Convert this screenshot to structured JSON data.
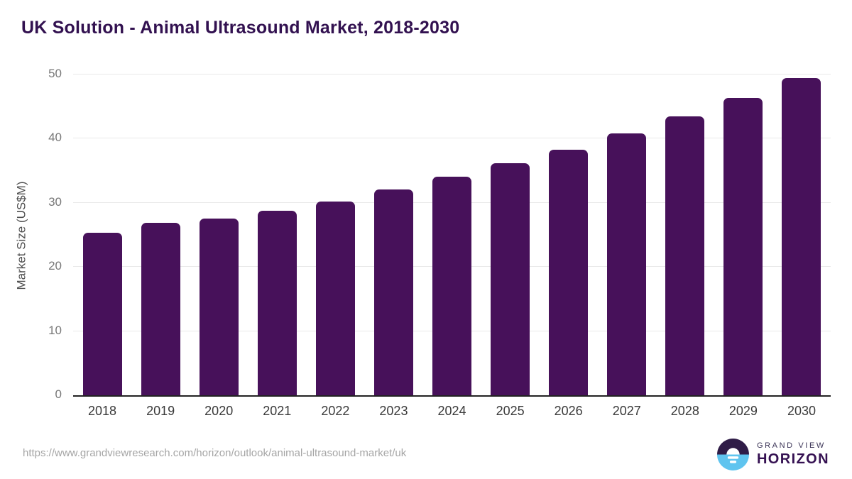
{
  "chart_data": {
    "type": "bar",
    "title": "UK Solution - Animal Ultrasound Market, 2018-2030",
    "categories": [
      "2018",
      "2019",
      "2020",
      "2021",
      "2022",
      "2023",
      "2024",
      "2025",
      "2026",
      "2027",
      "2028",
      "2029",
      "2030"
    ],
    "values": [
      25.3,
      26.9,
      27.6,
      28.8,
      30.2,
      32.1,
      34.1,
      36.2,
      38.3,
      40.8,
      43.5,
      46.3,
      49.4
    ],
    "xlabel": "",
    "ylabel": "Market Size (US$M)",
    "ylim": [
      0,
      50
    ],
    "yticks": [
      0,
      10,
      20,
      30,
      40,
      50
    ],
    "grid": true,
    "legend": false,
    "bar_color": "#47115A"
  },
  "colors": {
    "title_text": "#321150",
    "bar_fill": "#47115A",
    "axis_line": "#222222",
    "gridline": "#e9e9e9",
    "y_tick_text": "#787878",
    "x_tick_text": "#3a3a3a",
    "source_text": "#a5a5a5",
    "logo_top_half": "#2f1c47",
    "logo_bottom_half": "#5fc4ef",
    "brand_top_text": "#3a3356",
    "brand_bottom_text": "#351152"
  },
  "footer": {
    "source_url": "https://www.grandviewresearch.com/horizon/outlook/animal-ultrasound-market/uk",
    "brand_top": "GRAND VIEW",
    "brand_bottom": "HORIZON"
  }
}
